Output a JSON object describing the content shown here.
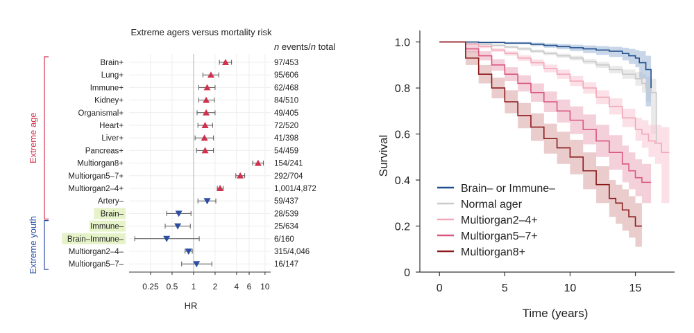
{
  "chart_data": [
    {
      "type": "forest",
      "title": "Extreme agers versus mortality risk",
      "column_header_prefix": "n",
      "column_header_middle": " events/",
      "column_header_italic": "n",
      "column_header_suffix": " total",
      "xlabel": "HR",
      "xscale": "log",
      "xlim": [
        0.125,
        12
      ],
      "xticks": [
        0.25,
        0.5,
        1,
        2,
        4,
        6,
        10
      ],
      "xtick_labels": [
        "0.25",
        "0.5",
        "1",
        "2",
        "4",
        "6",
        "10"
      ],
      "reference_line": 1,
      "groups": [
        {
          "label": "Extreme age",
          "color": "#d0314c",
          "rows": [
            0,
            12
          ]
        },
        {
          "label": "Extreme youth",
          "color": "#2b4ea2",
          "rows": [
            13,
            19
          ]
        }
      ],
      "rows": [
        {
          "label": "Brain+",
          "hr": 2.8,
          "lo": 2.3,
          "hi": 3.4,
          "events": "97/453",
          "direction": "up",
          "highlight": false
        },
        {
          "label": "Lung+",
          "hr": 1.75,
          "lo": 1.35,
          "hi": 2.25,
          "events": "95/606",
          "direction": "up",
          "highlight": false
        },
        {
          "label": "Immune+",
          "hr": 1.55,
          "lo": 1.18,
          "hi": 2.0,
          "events": "62/468",
          "direction": "up",
          "highlight": false
        },
        {
          "label": "Kidney+",
          "hr": 1.5,
          "lo": 1.18,
          "hi": 1.95,
          "events": "84/510",
          "direction": "up",
          "highlight": false
        },
        {
          "label": "Organismal+",
          "hr": 1.5,
          "lo": 1.12,
          "hi": 2.0,
          "events": "49/405",
          "direction": "up",
          "highlight": false
        },
        {
          "label": "Heart+",
          "hr": 1.45,
          "lo": 1.15,
          "hi": 1.85,
          "events": "72/520",
          "direction": "up",
          "highlight": false
        },
        {
          "label": "Liver+",
          "hr": 1.42,
          "lo": 1.05,
          "hi": 1.9,
          "events": "41/398",
          "direction": "up",
          "highlight": false
        },
        {
          "label": "Pancreas+",
          "hr": 1.45,
          "lo": 1.1,
          "hi": 1.9,
          "events": "54/459",
          "direction": "up",
          "highlight": false
        },
        {
          "label": "Multiorgan8+",
          "hr": 8.0,
          "lo": 6.7,
          "hi": 9.5,
          "events": "154/241",
          "direction": "up",
          "highlight": false
        },
        {
          "label": "Multiorgan5–7+",
          "hr": 4.5,
          "lo": 3.9,
          "hi": 5.2,
          "events": "292/704",
          "direction": "up",
          "highlight": false
        },
        {
          "label": "Multiorgan2–4+",
          "hr": 2.35,
          "lo": 2.15,
          "hi": 2.6,
          "events": "1,001/4,872",
          "direction": "up",
          "highlight": false
        },
        {
          "label": "Artery–",
          "hr": 1.55,
          "lo": 1.15,
          "hi": 2.05,
          "events": "59/437",
          "direction": "down",
          "highlight": false
        },
        {
          "label": "Brain–",
          "hr": 0.62,
          "lo": 0.42,
          "hi": 0.92,
          "events": "28/539",
          "direction": "down",
          "highlight": true
        },
        {
          "label": "Immune–",
          "hr": 0.6,
          "lo": 0.4,
          "hi": 0.9,
          "events": "25/634",
          "direction": "down",
          "highlight": true
        },
        {
          "label": "Brain–Immune–",
          "hr": 0.42,
          "lo": 0.15,
          "hi": 1.2,
          "events": "6/160",
          "direction": "down",
          "highlight": true
        },
        {
          "label": "Multiorgan2–4–",
          "hr": 0.85,
          "lo": 0.76,
          "hi": 0.96,
          "events": "315/4,046",
          "direction": "down",
          "highlight": false
        },
        {
          "label": "Multiorgan5–7–",
          "hr": 1.1,
          "lo": 0.68,
          "hi": 1.8,
          "events": "16/147",
          "direction": "down",
          "highlight": false
        }
      ],
      "colors": {
        "up": "#d0314c",
        "down": "#2b4ea2",
        "highlight": "#e6f3c9"
      }
    },
    {
      "type": "line",
      "subtype": "kaplan-meier",
      "xlabel": "Time (years)",
      "ylabel": "Survival",
      "xlim": [
        -1.5,
        18
      ],
      "ylim": [
        0,
        1.05
      ],
      "xticks": [
        0,
        5,
        10,
        15
      ],
      "xtick_labels": [
        "0",
        "5",
        "10",
        "15"
      ],
      "yticks": [
        0,
        0.2,
        0.4,
        0.6,
        0.8,
        1.0
      ],
      "ytick_labels": [
        "0",
        "0.2",
        "0.4",
        "0.6",
        "0.8",
        "1.0"
      ],
      "legend_position": "bottom-left",
      "series": [
        {
          "name": "Normal ager",
          "color": "#c9c9c9",
          "band_color": "#d9d9d9",
          "x": [
            0,
            1,
            2,
            3,
            4,
            5,
            6,
            7,
            8,
            9,
            10,
            11,
            12,
            13,
            14,
            15,
            15.5,
            15.8,
            16.2,
            16.6
          ],
          "y": [
            1.0,
            1.0,
            0.995,
            0.99,
            0.985,
            0.978,
            0.97,
            0.96,
            0.95,
            0.94,
            0.93,
            0.915,
            0.9,
            0.88,
            0.86,
            0.84,
            0.82,
            0.8,
            0.78,
            0.56
          ],
          "lo": [
            1.0,
            1.0,
            0.99,
            0.985,
            0.98,
            0.972,
            0.963,
            0.953,
            0.942,
            0.931,
            0.92,
            0.904,
            0.887,
            0.864,
            0.84,
            0.81,
            0.78,
            0.74,
            0.6,
            0.38
          ],
          "hi": [
            1.0,
            1.0,
            1.0,
            0.995,
            0.99,
            0.984,
            0.977,
            0.967,
            0.958,
            0.949,
            0.94,
            0.926,
            0.913,
            0.896,
            0.88,
            0.87,
            0.86,
            0.85,
            0.84,
            0.81
          ]
        },
        {
          "name": "Brain– or Immune–",
          "color": "#1f4e8c",
          "band_color": "#9bb4d6",
          "x": [
            0,
            1,
            3,
            5,
            7,
            8,
            9,
            10,
            11,
            12,
            13,
            14,
            14.5,
            15,
            15.3,
            15.8,
            16.2
          ],
          "y": [
            1.0,
            1.0,
            0.998,
            0.995,
            0.99,
            0.985,
            0.98,
            0.975,
            0.97,
            0.965,
            0.96,
            0.95,
            0.94,
            0.93,
            0.91,
            0.88,
            0.8
          ],
          "lo": [
            1.0,
            1.0,
            0.995,
            0.99,
            0.982,
            0.975,
            0.968,
            0.96,
            0.952,
            0.944,
            0.935,
            0.92,
            0.905,
            0.89,
            0.84,
            0.72,
            0.6
          ],
          "hi": [
            1.0,
            1.0,
            1.0,
            1.0,
            0.997,
            0.994,
            0.991,
            0.988,
            0.985,
            0.982,
            0.979,
            0.975,
            0.97,
            0.965,
            0.96,
            0.94,
            0.93
          ]
        },
        {
          "name": "Multiorgan2–4+",
          "color": "#f2a7b8",
          "band_color": "#f7c9d3",
          "x": [
            0,
            1,
            2,
            3,
            4,
            5,
            6,
            7,
            8,
            9,
            10,
            11,
            12,
            13,
            14,
            15,
            15.5,
            16,
            16.5,
            17,
            17.6
          ],
          "y": [
            1.0,
            1.0,
            0.99,
            0.98,
            0.965,
            0.95,
            0.93,
            0.91,
            0.885,
            0.86,
            0.83,
            0.8,
            0.76,
            0.72,
            0.67,
            0.62,
            0.6,
            0.57,
            0.56,
            0.52,
            0.52
          ],
          "lo": [
            1.0,
            1.0,
            0.985,
            0.973,
            0.957,
            0.94,
            0.918,
            0.896,
            0.868,
            0.84,
            0.808,
            0.775,
            0.73,
            0.685,
            0.63,
            0.57,
            0.54,
            0.5,
            0.47,
            0.3,
            0.0
          ],
          "hi": [
            1.0,
            1.0,
            0.995,
            0.987,
            0.973,
            0.96,
            0.942,
            0.924,
            0.902,
            0.88,
            0.852,
            0.825,
            0.79,
            0.755,
            0.71,
            0.67,
            0.66,
            0.64,
            0.64,
            0.63,
            0.62
          ]
        },
        {
          "name": "Multiorgan5–7+",
          "color": "#d9577d",
          "band_color": "#eba9bd",
          "x": [
            0,
            1,
            2,
            3,
            4,
            5,
            6,
            7,
            8,
            9,
            10,
            11,
            12,
            13,
            14,
            14.5,
            15,
            15.5,
            16.2
          ],
          "y": [
            1.0,
            1.0,
            0.97,
            0.94,
            0.9,
            0.86,
            0.82,
            0.78,
            0.74,
            0.7,
            0.66,
            0.62,
            0.57,
            0.52,
            0.47,
            0.44,
            0.41,
            0.39,
            0.39
          ],
          "lo": [
            1.0,
            1.0,
            0.955,
            0.92,
            0.875,
            0.83,
            0.785,
            0.74,
            0.695,
            0.65,
            0.6,
            0.555,
            0.5,
            0.445,
            0.39,
            0.36,
            0.33,
            0.3,
            0.28
          ],
          "hi": [
            1.0,
            1.0,
            0.985,
            0.96,
            0.925,
            0.89,
            0.855,
            0.82,
            0.785,
            0.75,
            0.72,
            0.685,
            0.64,
            0.595,
            0.55,
            0.52,
            0.49,
            0.47,
            0.47
          ]
        },
        {
          "name": "Multiorgan8+",
          "color": "#8b1a1a",
          "band_color": "#d9a3a3",
          "x": [
            0,
            1,
            2,
            3,
            4,
            5,
            6,
            7,
            8,
            9,
            10,
            11,
            12,
            13,
            13.5,
            14,
            14.5,
            15,
            15.5
          ],
          "y": [
            1.0,
            1.0,
            0.93,
            0.86,
            0.8,
            0.74,
            0.68,
            0.63,
            0.58,
            0.54,
            0.5,
            0.44,
            0.38,
            0.32,
            0.3,
            0.27,
            0.24,
            0.2,
            0.2
          ],
          "lo": [
            1.0,
            1.0,
            0.9,
            0.82,
            0.755,
            0.69,
            0.625,
            0.57,
            0.515,
            0.47,
            0.425,
            0.36,
            0.3,
            0.24,
            0.21,
            0.18,
            0.15,
            0.11,
            0.11
          ],
          "hi": [
            1.0,
            1.0,
            0.96,
            0.9,
            0.845,
            0.79,
            0.735,
            0.69,
            0.645,
            0.61,
            0.575,
            0.52,
            0.46,
            0.4,
            0.38,
            0.36,
            0.33,
            0.3,
            0.3
          ]
        }
      ],
      "legend_order": [
        "Brain– or Immune–",
        "Normal ager",
        "Multiorgan2–4+",
        "Multiorgan5–7+",
        "Multiorgan8+"
      ]
    }
  ]
}
